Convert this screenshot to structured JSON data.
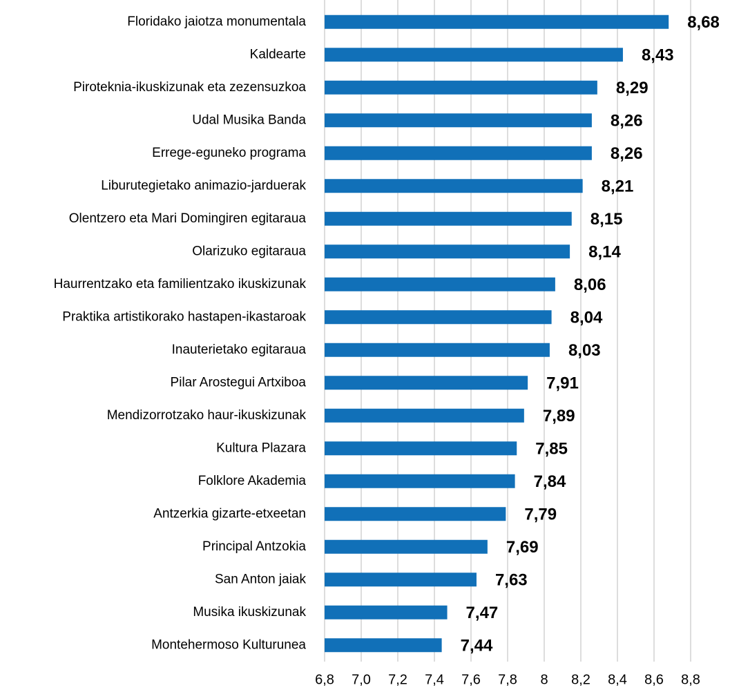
{
  "chart_data": {
    "type": "bar",
    "orientation": "horizontal",
    "categories": [
      "Floridako jaiotza monumentala",
      "Kaldearte",
      "Piroteknia-ikuskizunak eta zezensuzkoa",
      "Udal Musika Banda",
      "Errege-eguneko programa",
      "Liburutegietako animazio-jarduerak",
      "Olentzero eta Mari Domingiren egitaraua",
      "Olarizuko egitaraua",
      "Haurrentzako eta familientzako ikuskizunak",
      "Praktika artistikorako hastapen-ikastaroak",
      "Inauterietako egitaraua",
      "Pilar Arostegui Artxiboa",
      "Mendizorrotzako haur-ikuskizunak",
      "Kultura Plazara",
      "Folklore Akademia",
      "Antzerkia gizarte-etxeetan",
      "Principal Antzokia",
      "San Anton jaiak",
      "Musika ikuskizunak",
      "Montehermoso Kulturunea"
    ],
    "values": [
      8.68,
      8.43,
      8.29,
      8.26,
      8.26,
      8.21,
      8.15,
      8.14,
      8.06,
      8.04,
      8.03,
      7.91,
      7.89,
      7.85,
      7.84,
      7.79,
      7.69,
      7.63,
      7.47,
      7.44
    ],
    "value_labels": [
      "8,68",
      "8,43",
      "8,29",
      "8,26",
      "8,26",
      "8,21",
      "8,15",
      "8,14",
      "8,06",
      "8,04",
      "8,03",
      "7,91",
      "7,89",
      "7,85",
      "7,84",
      "7,79",
      "7,69",
      "7,63",
      "7,47",
      "7,44"
    ],
    "color": "#1170b8",
    "xlim": [
      6.8,
      8.8
    ],
    "xticks": [
      {
        "value": 6.8,
        "label": "6,8"
      },
      {
        "value": 7.0,
        "label": "7,0"
      },
      {
        "value": 7.2,
        "label": "7,2"
      },
      {
        "value": 7.4,
        "label": "7,4"
      },
      {
        "value": 7.6,
        "label": "7,6"
      },
      {
        "value": 7.8,
        "label": "7,8"
      },
      8,
      {
        "value": 8.2,
        "label": "8,2"
      },
      {
        "value": 8.4,
        "label": "8,4"
      },
      {
        "value": 8.6,
        "label": "8,6"
      },
      {
        "value": 8.8,
        "label": "8,8"
      }
    ],
    "grid": true
  }
}
